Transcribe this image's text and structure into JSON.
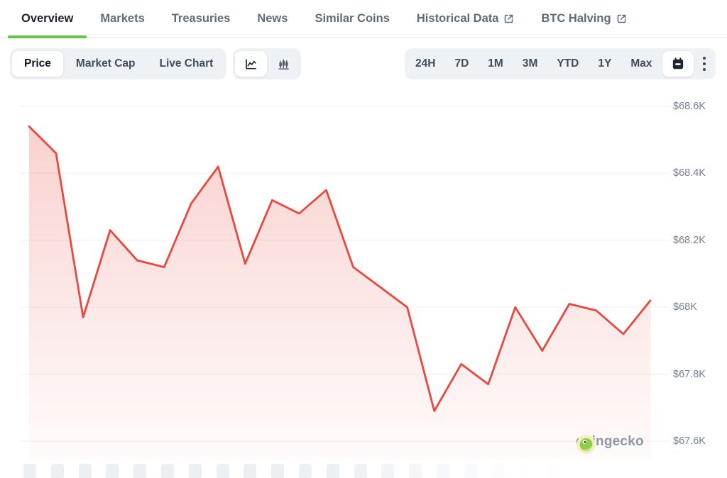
{
  "nav_tabs": {
    "items": [
      {
        "label": "Overview",
        "active": true,
        "external": false
      },
      {
        "label": "Markets",
        "active": false,
        "external": false
      },
      {
        "label": "Treasuries",
        "active": false,
        "external": false
      },
      {
        "label": "News",
        "active": false,
        "external": false
      },
      {
        "label": "Similar Coins",
        "active": false,
        "external": false
      },
      {
        "label": "Historical Data",
        "active": false,
        "external": true
      },
      {
        "label": "BTC Halving",
        "active": false,
        "external": true
      }
    ]
  },
  "toolbar": {
    "metric_toggle": {
      "options": [
        {
          "label": "Price",
          "selected": true
        },
        {
          "label": "Market Cap",
          "selected": false
        },
        {
          "label": "Live Chart",
          "selected": false
        }
      ]
    },
    "chart_type_toggle": {
      "options": [
        {
          "icon": "line-chart-icon",
          "selected": true
        },
        {
          "icon": "candlestick-chart-icon",
          "selected": false
        }
      ]
    },
    "range_toggle": {
      "options": [
        {
          "label": "24H"
        },
        {
          "label": "7D"
        },
        {
          "label": "1M"
        },
        {
          "label": "3M"
        },
        {
          "label": "YTD"
        },
        {
          "label": "1Y"
        },
        {
          "label": "Max"
        }
      ],
      "calendar_icon": "calendar-icon",
      "more_icon": "kebab-menu-icon"
    }
  },
  "chart_data": {
    "type": "area",
    "series": [
      {
        "name": "price_usd_thousands",
        "values": [
          68.54,
          68.46,
          67.97,
          68.23,
          68.14,
          68.12,
          68.31,
          68.42,
          68.13,
          68.32,
          68.28,
          68.35,
          68.12,
          68.06,
          68.0,
          67.69,
          67.83,
          67.77,
          68.0,
          67.87,
          68.01,
          67.99,
          67.92,
          68.02
        ]
      }
    ],
    "y_ticks": [
      {
        "label": "$68.6K",
        "value": 68.6
      },
      {
        "label": "$68.4K",
        "value": 68.4
      },
      {
        "label": "$68.2K",
        "value": 68.2
      },
      {
        "label": "$68K",
        "value": 68.0
      },
      {
        "label": "$67.8K",
        "value": 67.8
      },
      {
        "label": "$67.6K",
        "value": 67.6
      }
    ],
    "ylim": [
      67.6,
      68.6
    ],
    "grid": "horizontal",
    "legend_position": "none",
    "line_color": "#e8483d",
    "fill_color": "#e8483d",
    "grid_color": "#f1f3f6"
  },
  "watermark": {
    "brand_text": "coingecko",
    "icon": "coingecko-gecko-icon"
  },
  "bottom_strip": {
    "square_count": 20
  },
  "colors": {
    "accent_green": "#6cc04a",
    "tab_active": "#1b222c",
    "tab_inactive": "#5d6b7c"
  }
}
